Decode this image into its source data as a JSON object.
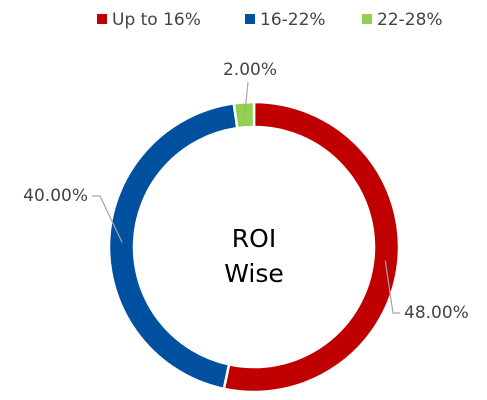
{
  "chart_data": {
    "type": "doughnut",
    "center_label": [
      "ROI",
      "Wise"
    ],
    "categories": [
      "Up to 16%",
      "16-22%",
      "22-28%"
    ],
    "values": [
      48,
      40,
      2
    ],
    "value_labels": [
      "48.00%",
      "40.00%",
      "2.00%"
    ],
    "colors": [
      "#c00000",
      "#0050a0",
      "#92d050"
    ],
    "legend": "top"
  }
}
